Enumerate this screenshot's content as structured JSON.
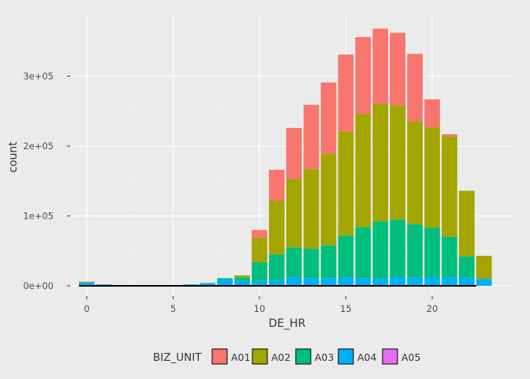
{
  "chart_data": {
    "type": "bar",
    "stacked": true,
    "title": "",
    "xlabel": "DE_HR",
    "ylabel": "count",
    "xlim": [
      -0.6,
      23.6
    ],
    "ylim": [
      0,
      370000
    ],
    "x_ticks": [
      0,
      5,
      10,
      15,
      20
    ],
    "x_tick_labels": [
      "0",
      "5",
      "10",
      "15",
      "20"
    ],
    "y_ticks": [
      0,
      100000,
      200000,
      300000
    ],
    "y_tick_labels": [
      "0e+00",
      "1e+05",
      "2e+05",
      "3e+05"
    ],
    "grid": true,
    "legend_position": "bottom",
    "legend_title": "BIZ_UNIT",
    "x": [
      0,
      1,
      2,
      3,
      4,
      5,
      6,
      7,
      8,
      9,
      10,
      11,
      12,
      13,
      14,
      15,
      16,
      17,
      18,
      19,
      20,
      21,
      22,
      23
    ],
    "stack_order": [
      "A05",
      "A04",
      "A03",
      "A02",
      "A01"
    ],
    "series": [
      {
        "name": "A01",
        "color": "#F8766D",
        "values": [
          0,
          0,
          0,
          0,
          0,
          0,
          0,
          0,
          0,
          0,
          11000,
          44000,
          73000,
          92000,
          102000,
          110000,
          110000,
          108000,
          104000,
          97000,
          40000,
          3000,
          0,
          0
        ]
      },
      {
        "name": "A02",
        "color": "#A3A500",
        "values": [
          1000,
          0,
          0,
          0,
          0,
          0,
          0,
          0,
          0,
          3000,
          35000,
          77000,
          98000,
          114000,
          131000,
          149000,
          162000,
          168000,
          163000,
          147000,
          144000,
          144000,
          94000,
          33000
        ]
      },
      {
        "name": "A03",
        "color": "#00BF7D",
        "values": [
          0,
          0,
          0,
          0,
          0,
          0,
          0,
          0,
          2000,
          5000,
          27000,
          37000,
          43000,
          42000,
          47000,
          60000,
          73000,
          82000,
          82000,
          76000,
          70000,
          58000,
          30000,
          0
        ]
      },
      {
        "name": "A04",
        "color": "#00B0F6",
        "values": [
          5000,
          2000,
          0,
          0,
          0,
          0,
          2000,
          4000,
          9000,
          7000,
          7000,
          8000,
          12000,
          11000,
          11000,
          12000,
          11000,
          10000,
          13000,
          12000,
          13000,
          12000,
          12000,
          10000
        ]
      },
      {
        "name": "A05",
        "color": "#E76BF3",
        "values": [
          0,
          0,
          0,
          0,
          0,
          0,
          0,
          0,
          0,
          0,
          0,
          0,
          0,
          0,
          0,
          0,
          0,
          0,
          0,
          0,
          0,
          0,
          0,
          0
        ]
      }
    ]
  }
}
